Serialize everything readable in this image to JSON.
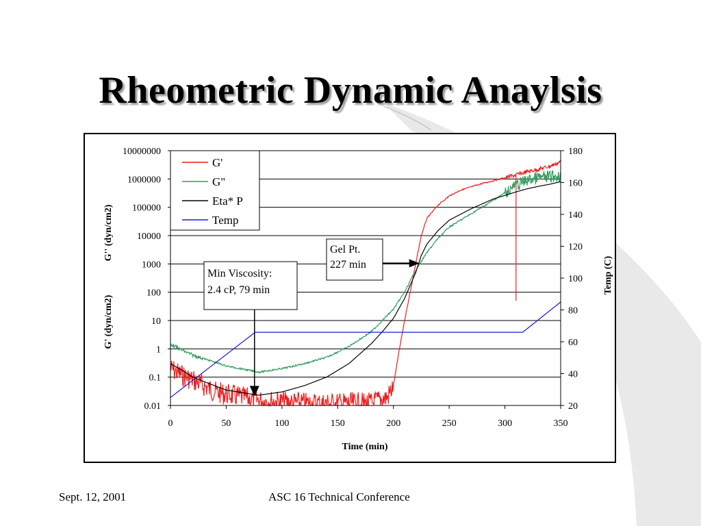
{
  "slide": {
    "title": "Rheometric Dynamic Anaylsis",
    "footer_date": "Sept. 12, 2001",
    "footer_conference": "ASC 16 Technical Conference"
  },
  "colors": {
    "G_prime": "#ee1c1c",
    "G_double_prime": "#2e9b5b",
    "eta": "#000000",
    "temp": "#1a1ad6",
    "swoosh": "#e6e6e6"
  },
  "chart_data": {
    "type": "line",
    "xlabel": "Time (min)",
    "ylabel_left_top": "G'' (dyn/cm2)",
    "ylabel_left_bottom": "G' (dyn/cm2)",
    "ylabel_right": "Temp (C)",
    "x_ticks": [
      "0",
      "50",
      "100",
      "150",
      "200",
      "250",
      "300",
      "350"
    ],
    "y_left_ticks": [
      "0.01",
      "0.1",
      "1",
      "10",
      "100",
      "1000",
      "10000",
      "100000",
      "1000000",
      "10000000"
    ],
    "y_right_ticks": [
      "20",
      "40",
      "60",
      "80",
      "100",
      "120",
      "140",
      "160",
      "180"
    ],
    "xlim": [
      0,
      350
    ],
    "ylim_left": [
      0.01,
      10000000
    ],
    "ylim_left_scale": "log",
    "ylim_right": [
      20,
      180
    ],
    "grid": "horizontal",
    "legend": {
      "position": "top-left",
      "entries": [
        "G'",
        "G\"",
        "Eta* P",
        "Temp"
      ]
    },
    "series": [
      {
        "name": "G'",
        "axis": "left",
        "noisy": true,
        "x": [
          0,
          10,
          20,
          40,
          79,
          120,
          180,
          195,
          200,
          205,
          210,
          215,
          220,
          225,
          230,
          240,
          250,
          260,
          280,
          300,
          310,
          320,
          330,
          340,
          350
        ],
        "y": [
          0.2,
          0.12,
          0.08,
          0.03,
          0.015,
          0.012,
          0.012,
          0.02,
          0.05,
          0.8,
          10,
          100,
          1000,
          10000,
          40000,
          120000,
          250000,
          400000,
          700000,
          1100000,
          1400000,
          1800000,
          2200000,
          2800000,
          4000000
        ],
        "spike": {
          "x": 310,
          "y": 50
        }
      },
      {
        "name": "G\"",
        "axis": "left",
        "noisy": true,
        "x": [
          0,
          10,
          20,
          30,
          50,
          79,
          100,
          120,
          140,
          160,
          180,
          200,
          210,
          220,
          230,
          240,
          250,
          270,
          290,
          310,
          320,
          330,
          340,
          350
        ],
        "y": [
          1.5,
          0.9,
          0.6,
          0.45,
          0.25,
          0.15,
          0.2,
          0.3,
          0.5,
          1.2,
          4,
          25,
          100,
          600,
          2500,
          8000,
          20000,
          60000,
          180000,
          600000,
          900000,
          1100000,
          1200000,
          1300000
        ]
      },
      {
        "name": "Eta* P",
        "axis": "left",
        "x": [
          0,
          10,
          20,
          30,
          50,
          79,
          100,
          120,
          140,
          160,
          180,
          190,
          200,
          210,
          220,
          225,
          230,
          240,
          250,
          270,
          290,
          310,
          320,
          330,
          340,
          350
        ],
        "y": [
          0.3,
          0.18,
          0.1,
          0.07,
          0.035,
          0.023,
          0.03,
          0.05,
          0.1,
          0.3,
          1.5,
          4,
          12,
          60,
          500,
          2000,
          5000,
          15000,
          35000,
          90000,
          200000,
          350000,
          450000,
          550000,
          650000,
          800000
        ]
      },
      {
        "name": "Temp",
        "axis": "right",
        "x": [
          0,
          76,
          316,
          350
        ],
        "y": [
          25,
          66,
          66,
          85
        ]
      }
    ],
    "annotations": [
      {
        "line1": "Gel Pt.",
        "line2": "227 min",
        "target_x": 227,
        "target_y": 1000
      },
      {
        "line1": "Min Viscosity:",
        "line2": "2.4 cP, 79 min",
        "target_x": 76,
        "target_y": 0.02
      }
    ]
  }
}
